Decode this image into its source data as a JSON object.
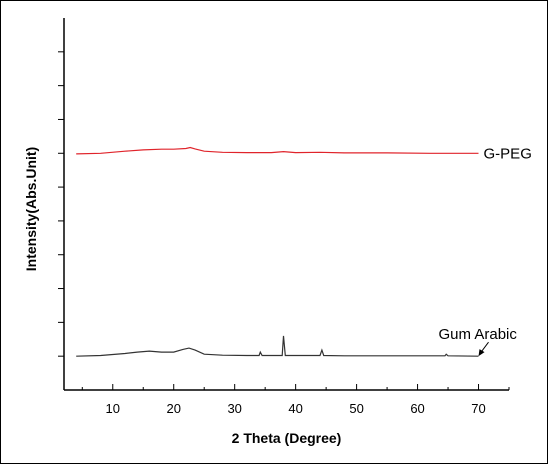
{
  "chart_data": {
    "type": "line",
    "title": "",
    "xlabel": "2 Theta (Degree)",
    "ylabel": "Intensity(Abs.Unit)",
    "xlim": [
      2,
      75
    ],
    "ylim": [
      0,
      11
    ],
    "x_ticks": [
      10,
      20,
      30,
      40,
      50,
      60,
      70
    ],
    "y_ticks_unlabeled": [
      1,
      2,
      3,
      4,
      5,
      6,
      7,
      8,
      9,
      10
    ],
    "grid": false,
    "series": [
      {
        "name": "G-PEG",
        "color": "#e0242b",
        "x": [
          4,
          8,
          12,
          15,
          18,
          20,
          22,
          22.7,
          23.5,
          25,
          28,
          32,
          36,
          38,
          40,
          44,
          48,
          55,
          62,
          70
        ],
        "y": [
          6.98,
          7.0,
          7.06,
          7.1,
          7.12,
          7.12,
          7.14,
          7.17,
          7.13,
          7.06,
          7.03,
          7.02,
          7.02,
          7.05,
          7.02,
          7.03,
          7.01,
          7.01,
          7.0,
          7.0
        ]
      },
      {
        "name": "Gum Arabic",
        "color": "#333333",
        "x": [
          4,
          8,
          12,
          14,
          16,
          18,
          20,
          21.5,
          22.5,
          23.5,
          25,
          28,
          32,
          34,
          34.2,
          34.5,
          36,
          37.8,
          38,
          38.3,
          40,
          44,
          44.3,
          44.6,
          48,
          55,
          64.5,
          64.7,
          65,
          70
        ],
        "y": [
          1.0,
          1.02,
          1.08,
          1.12,
          1.15,
          1.12,
          1.12,
          1.2,
          1.24,
          1.18,
          1.06,
          1.03,
          1.02,
          1.02,
          1.12,
          1.02,
          1.02,
          1.02,
          1.6,
          1.02,
          1.02,
          1.02,
          1.18,
          1.02,
          1.01,
          1.01,
          1.01,
          1.06,
          1.01,
          1.0
        ]
      }
    ],
    "annotation": {
      "text": "Gum Arabic",
      "arrow_to": [
        70,
        1.0
      ]
    },
    "series_label_right": "G-PEG"
  }
}
